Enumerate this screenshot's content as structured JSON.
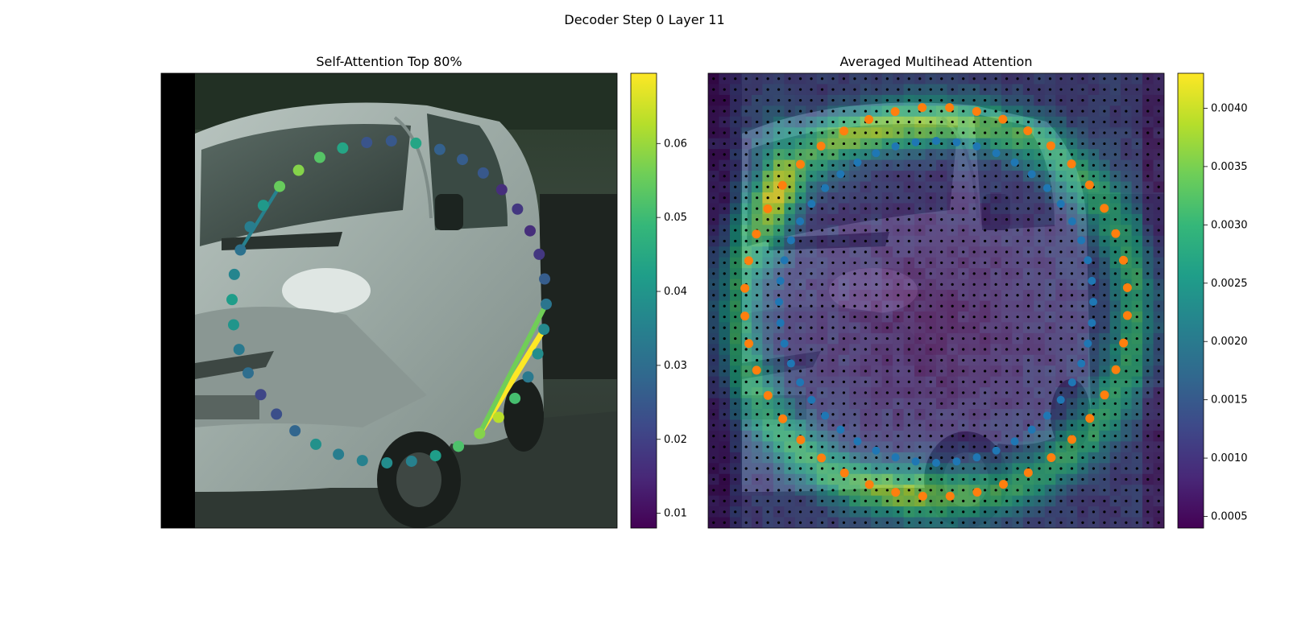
{
  "figure": {
    "suptitle": "Decoder Step 0 Layer 11"
  },
  "chart_data": [
    {
      "type": "scatter",
      "title": "Self-Attention Top 80%",
      "background": "photo: silver van (front three-quarter view) on street, trees behind",
      "colormap": "viridis",
      "colorbar": {
        "min": 0.008,
        "max": 0.0695,
        "ticks": [
          "0.01",
          "0.02",
          "0.03",
          "0.04",
          "0.05",
          "0.06"
        ],
        "tick_values": [
          0.01,
          0.02,
          0.03,
          0.04,
          0.05,
          0.06
        ]
      },
      "points_value": [
        0.044,
        0.053,
        0.058,
        0.055,
        0.041,
        0.034,
        0.031,
        0.036,
        0.042,
        0.04,
        0.033,
        0.03,
        0.021,
        0.023,
        0.028,
        0.039,
        0.034,
        0.035,
        0.038,
        0.035,
        0.042,
        0.052,
        0.058,
        0.063,
        0.051,
        0.033,
        0.038,
        0.037,
        0.032,
        0.026,
        0.018,
        0.016,
        0.018,
        0.016,
        0.025,
        0.026,
        0.027,
        0.044,
        0.025,
        0.024
      ],
      "attention_lines": [
        {
          "from": 22,
          "to": 27,
          "weight": 0.0695
        },
        {
          "from": 22,
          "to": 28,
          "weight": 0.056
        },
        {
          "from": 3,
          "to": 6,
          "weight": 0.035
        }
      ]
    },
    {
      "type": "heatmap",
      "title": "Averaged Multihead Attention",
      "colormap": "viridis",
      "grid": "42 x 42 attention cells with black dot at each cell centre, overlaid on faded photo",
      "colorbar": {
        "min": 0.0004,
        "max": 0.0043,
        "ticks": [
          "0.0005",
          "0.0010",
          "0.0015",
          "0.0020",
          "0.0025",
          "0.0030",
          "0.0035",
          "0.0040"
        ],
        "tick_values": [
          0.0005,
          0.001,
          0.0015,
          0.002,
          0.0025,
          0.003,
          0.0035,
          0.004
        ]
      },
      "series": [
        {
          "color": "#1f77b4",
          "marker": "circle"
        },
        {
          "color": "#ff7f0e",
          "marker": "circle"
        }
      ]
    }
  ],
  "colors": {
    "viridis": [
      "#440154",
      "#482878",
      "#3e4989",
      "#31688e",
      "#26828e",
      "#1f9e89",
      "#35b779",
      "#6ece58",
      "#b5de2b",
      "#fde725"
    ],
    "blue_points": "#1f77b4",
    "orange_points": "#ff7f0e",
    "grid_dots": "#000000"
  }
}
